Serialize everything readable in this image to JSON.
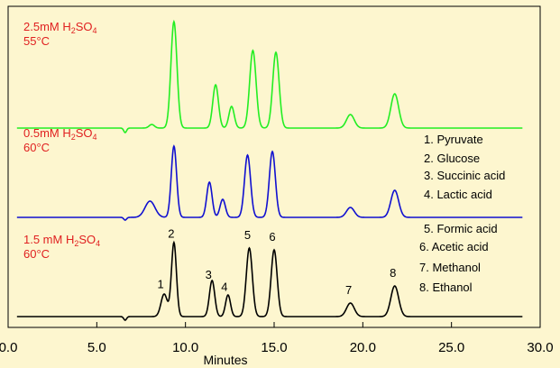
{
  "chart_data": {
    "type": "line",
    "xlabel": "Minutes",
    "xlim": [
      0,
      30
    ],
    "xticks": [
      {
        "value": 0,
        "label": "0.0"
      },
      {
        "value": 5,
        "label": "5.0"
      },
      {
        "value": 10,
        "label": "10.0"
      },
      {
        "value": 15,
        "label": "15.0"
      },
      {
        "value": 20,
        "label": "20.0"
      },
      {
        "value": 25,
        "label": "25.0"
      },
      {
        "value": 30,
        "label": "30.0"
      }
    ],
    "series": [
      {
        "color": "#22ee22",
        "condition": [
          "2.5mM H",
          "2",
          "SO",
          "4",
          "55°C"
        ],
        "dip": {
          "x": 6.6,
          "depth": 5
        },
        "peaks": [
          {
            "x": 8.1,
            "h": 4,
            "w": 0.15
          },
          {
            "x": 9.35,
            "h": 118,
            "w": 0.17
          },
          {
            "x": 11.7,
            "h": 48,
            "w": 0.16
          },
          {
            "x": 12.6,
            "h": 24,
            "w": 0.15
          },
          {
            "x": 13.8,
            "h": 86,
            "w": 0.18
          },
          {
            "x": 15.1,
            "h": 84,
            "w": 0.18
          },
          {
            "x": 19.3,
            "h": 15,
            "w": 0.22
          },
          {
            "x": 21.8,
            "h": 38,
            "w": 0.22
          }
        ]
      },
      {
        "color": "#1010d0",
        "condition": [
          "0.5mM H",
          "2",
          "SO",
          "4",
          "60°C"
        ],
        "dip": {
          "x": 6.6,
          "depth": 3
        },
        "peaks": [
          {
            "x": 8.0,
            "h": 18,
            "w": 0.28
          },
          {
            "x": 9.35,
            "h": 79,
            "w": 0.15
          },
          {
            "x": 11.35,
            "h": 39,
            "w": 0.15
          },
          {
            "x": 12.1,
            "h": 20,
            "w": 0.15
          },
          {
            "x": 13.5,
            "h": 69,
            "w": 0.17
          },
          {
            "x": 14.9,
            "h": 73,
            "w": 0.17
          },
          {
            "x": 19.3,
            "h": 11,
            "w": 0.22
          },
          {
            "x": 21.8,
            "h": 30,
            "w": 0.22
          }
        ]
      },
      {
        "color": "#000000",
        "condition": [
          "1.5 mM H",
          "2",
          "SO",
          "4",
          "60°C"
        ],
        "dip": {
          "x": 6.6,
          "depth": 4
        },
        "peaks": [
          {
            "x": 8.8,
            "h": 25,
            "w": 0.18
          },
          {
            "x": 9.35,
            "h": 82,
            "w": 0.14
          },
          {
            "x": 11.5,
            "h": 40,
            "w": 0.15
          },
          {
            "x": 12.4,
            "h": 24,
            "w": 0.14
          },
          {
            "x": 13.6,
            "h": 76,
            "w": 0.17
          },
          {
            "x": 15.0,
            "h": 74,
            "w": 0.17
          },
          {
            "x": 19.3,
            "h": 15,
            "w": 0.22
          },
          {
            "x": 21.8,
            "h": 34,
            "w": 0.22
          }
        ]
      }
    ],
    "peak_labels": [
      {
        "label": "1",
        "x": 8.7
      },
      {
        "label": "2",
        "x": 9.3
      },
      {
        "label": "3",
        "x": 11.4
      },
      {
        "label": "4",
        "x": 12.3
      },
      {
        "label": "5",
        "x": 13.6
      },
      {
        "label": "6",
        "x": 15.0
      },
      {
        "label": "7",
        "x": 19.3
      },
      {
        "label": "8",
        "x": 21.8
      }
    ],
    "legend": [
      "1. Pyruvate",
      "2. Glucose",
      "3. Succinic acid",
      "4. Lactic acid",
      "5. Formic acid",
      "6. Acetic acid",
      "7. Methanol",
      "8. Ethanol"
    ]
  }
}
